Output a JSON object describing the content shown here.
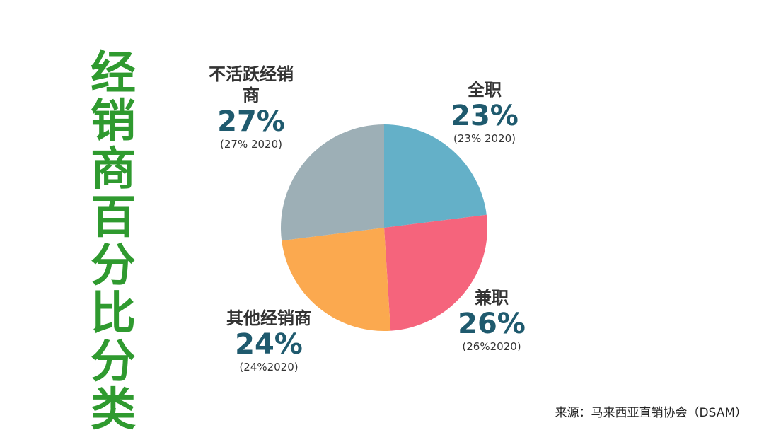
{
  "title_chars": [
    "经",
    "销",
    "商",
    "百",
    "分",
    "比",
    "分",
    "类"
  ],
  "chart_data": {
    "type": "pie",
    "title": "经销商百分比分类",
    "slices": [
      {
        "label": "全职",
        "value": 23,
        "value_label": "23%",
        "prev_label": "(23% 2020)",
        "color": "#64b0c8"
      },
      {
        "label": "兼职",
        "value": 26,
        "value_label": "26%",
        "prev_label": "(26%2020)",
        "color": "#f5647c"
      },
      {
        "label": "其他经销商",
        "value": 24,
        "value_label": "24%",
        "prev_label": "(24%2020)",
        "color": "#fba94f"
      },
      {
        "label": "不活跃经销商",
        "value": 27,
        "value_label": "27%",
        "prev_label": "(27% 2020)",
        "color": "#9dafb6"
      }
    ],
    "start_angle_deg": 0,
    "direction": "clockwise"
  },
  "labels": {
    "inactive": {
      "name_line1": "不活跃经销",
      "name_line2": "商"
    }
  },
  "source": "来源：马来西亚直销协会（DSAM）"
}
